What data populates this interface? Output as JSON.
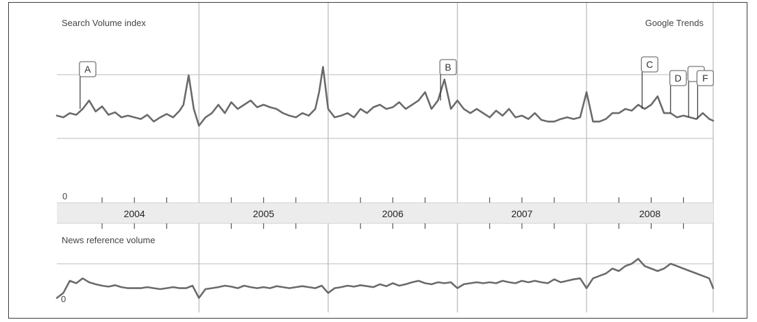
{
  "chart_data": {
    "type": "line",
    "brand": "Google Trends",
    "line_color": "#6a6a6a",
    "panels": [
      {
        "id": "search",
        "title": "Search Volume index",
        "zero_label": "0",
        "x_range": [
          2003.9,
          2008.98
        ],
        "y_range": [
          0,
          2.2
        ],
        "series": [
          {
            "x": [
              2003.9,
              2003.95,
              2004,
              2004.05,
              2004.1,
              2004.15,
              2004.2,
              2004.25,
              2004.3,
              2004.35,
              2004.4,
              2004.45,
              2004.5,
              2004.55,
              2004.6,
              2004.65,
              2004.7,
              2004.75,
              2004.8,
              2004.85,
              2004.88,
              2004.92,
              2004.96,
              2005.0,
              2005.05,
              2005.1,
              2005.15,
              2005.2,
              2005.25,
              2005.3,
              2005.35,
              2005.4,
              2005.45,
              2005.5,
              2005.55,
              2005.6,
              2005.65,
              2005.7,
              2005.75,
              2005.8,
              2005.85,
              2005.9,
              2005.93,
              2005.96,
              2006.0,
              2006.05,
              2006.1,
              2006.15,
              2006.2,
              2006.25,
              2006.3,
              2006.35,
              2006.4,
              2006.45,
              2006.5,
              2006.55,
              2006.6,
              2006.65,
              2006.7,
              2006.75,
              2006.8,
              2006.85,
              2006.9,
              2006.95,
              2007.0,
              2007.05,
              2007.1,
              2007.15,
              2007.2,
              2007.25,
              2007.3,
              2007.35,
              2007.4,
              2007.45,
              2007.5,
              2007.55,
              2007.6,
              2007.65,
              2007.7,
              2007.75,
              2007.8,
              2007.85,
              2007.9,
              2007.95,
              2008.0,
              2008.05,
              2008.1,
              2008.15,
              2008.2,
              2008.25,
              2008.3,
              2008.35,
              2008.4,
              2008.45,
              2008.5,
              2008.55,
              2008.6,
              2008.65,
              2008.7,
              2008.75,
              2008.8,
              2008.85,
              2008.9,
              2008.95,
              2008.98
            ],
            "y": [
              1.02,
              1.0,
              1.05,
              1.03,
              1.1,
              1.2,
              1.07,
              1.13,
              1.03,
              1.06,
              1.0,
              1.02,
              1.0,
              0.98,
              1.03,
              0.95,
              1.0,
              1.04,
              1.0,
              1.08,
              1.15,
              1.5,
              1.1,
              0.9,
              1.0,
              1.05,
              1.15,
              1.05,
              1.18,
              1.1,
              1.15,
              1.2,
              1.12,
              1.15,
              1.12,
              1.1,
              1.05,
              1.02,
              1.0,
              1.05,
              1.02,
              1.1,
              1.3,
              1.6,
              1.1,
              1.0,
              1.02,
              1.05,
              1.0,
              1.1,
              1.05,
              1.12,
              1.15,
              1.1,
              1.12,
              1.18,
              1.1,
              1.15,
              1.2,
              1.3,
              1.1,
              1.2,
              1.45,
              1.1,
              1.2,
              1.1,
              1.05,
              1.1,
              1.05,
              1.0,
              1.08,
              1.02,
              1.1,
              1.0,
              1.02,
              0.98,
              1.05,
              0.97,
              0.95,
              0.95,
              0.98,
              1.0,
              0.98,
              1.0,
              1.3,
              0.95,
              0.95,
              0.98,
              1.05,
              1.05,
              1.1,
              1.08,
              1.15,
              1.1,
              1.15,
              1.25,
              1.05,
              1.05,
              1.0,
              1.02,
              1.0,
              0.98,
              1.05,
              0.98,
              0.96
            ]
          }
        ],
        "events": [
          {
            "label": "A",
            "x": 2004.08
          },
          {
            "label": "B",
            "x": 2006.87
          },
          {
            "label": "C",
            "x": 2008.43
          },
          {
            "label": "D",
            "x": 2008.65
          },
          {
            "label": "",
            "x": 2008.79
          },
          {
            "label": "F",
            "x": 2008.86
          }
        ]
      },
      {
        "id": "news",
        "title": "News reference volume",
        "zero_label": "0",
        "x_range": [
          2003.9,
          2008.98
        ],
        "y_range": [
          0,
          1.4
        ],
        "series": [
          {
            "x": [
              2003.9,
              2003.95,
              2004,
              2004.05,
              2004.1,
              2004.15,
              2004.2,
              2004.25,
              2004.3,
              2004.35,
              2004.4,
              2004.45,
              2004.5,
              2004.55,
              2004.6,
              2004.65,
              2004.7,
              2004.75,
              2004.8,
              2004.85,
              2004.9,
              2004.95,
              2005.0,
              2005.05,
              2005.1,
              2005.15,
              2005.2,
              2005.25,
              2005.3,
              2005.35,
              2005.4,
              2005.45,
              2005.5,
              2005.55,
              2005.6,
              2005.65,
              2005.7,
              2005.75,
              2005.8,
              2005.85,
              2005.9,
              2005.95,
              2006.0,
              2006.05,
              2006.1,
              2006.15,
              2006.2,
              2006.25,
              2006.3,
              2006.35,
              2006.4,
              2006.45,
              2006.5,
              2006.55,
              2006.6,
              2006.65,
              2006.7,
              2006.75,
              2006.8,
              2006.85,
              2006.9,
              2006.95,
              2007.0,
              2007.05,
              2007.1,
              2007.15,
              2007.2,
              2007.25,
              2007.3,
              2007.35,
              2007.4,
              2007.45,
              2007.5,
              2007.55,
              2007.6,
              2007.65,
              2007.7,
              2007.75,
              2007.8,
              2007.85,
              2007.9,
              2007.95,
              2008.0,
              2008.05,
              2008.1,
              2008.15,
              2008.2,
              2008.25,
              2008.3,
              2008.35,
              2008.4,
              2008.45,
              2008.5,
              2008.55,
              2008.6,
              2008.65,
              2008.7,
              2008.75,
              2008.8,
              2008.85,
              2008.9,
              2008.95,
              2008.98
            ],
            "y": [
              0.1,
              0.2,
              0.45,
              0.4,
              0.5,
              0.42,
              0.38,
              0.35,
              0.33,
              0.36,
              0.32,
              0.3,
              0.3,
              0.3,
              0.32,
              0.3,
              0.28,
              0.3,
              0.32,
              0.3,
              0.3,
              0.35,
              0.1,
              0.28,
              0.3,
              0.32,
              0.35,
              0.33,
              0.3,
              0.35,
              0.32,
              0.3,
              0.32,
              0.3,
              0.34,
              0.32,
              0.3,
              0.32,
              0.34,
              0.32,
              0.3,
              0.35,
              0.2,
              0.3,
              0.32,
              0.35,
              0.33,
              0.36,
              0.34,
              0.32,
              0.38,
              0.34,
              0.4,
              0.35,
              0.38,
              0.42,
              0.45,
              0.4,
              0.38,
              0.42,
              0.4,
              0.42,
              0.3,
              0.38,
              0.4,
              0.42,
              0.4,
              0.42,
              0.4,
              0.45,
              0.42,
              0.4,
              0.45,
              0.42,
              0.45,
              0.42,
              0.4,
              0.48,
              0.42,
              0.45,
              0.48,
              0.5,
              0.3,
              0.5,
              0.55,
              0.6,
              0.7,
              0.65,
              0.75,
              0.8,
              0.9,
              0.75,
              0.7,
              0.65,
              0.7,
              0.8,
              0.75,
              0.7,
              0.65,
              0.6,
              0.55,
              0.5,
              0.3
            ]
          }
        ]
      }
    ],
    "x_axis": {
      "years": [
        "2004",
        "2005",
        "2006",
        "2007",
        "2008"
      ],
      "year_starts": [
        2004,
        2005,
        2006,
        2007,
        2008
      ],
      "quarter_ticks": true
    }
  }
}
